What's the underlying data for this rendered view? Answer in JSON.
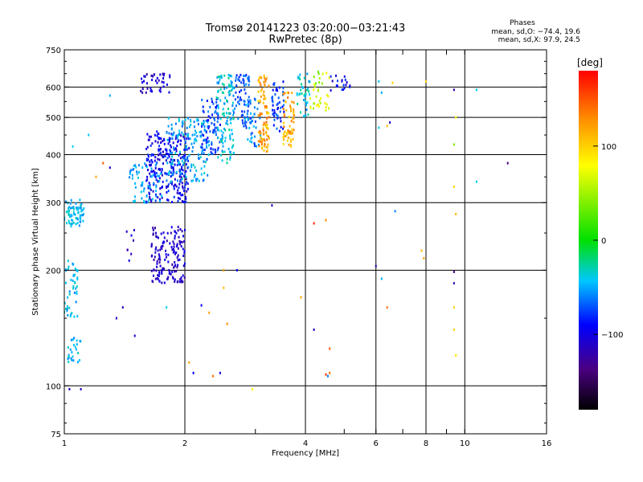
{
  "chart_data": {
    "type": "scatter",
    "title": "Tromsø 20141223 03:20:00−03:21:43",
    "subtitle": "RwPretec (8p)",
    "xlabel": "Frequency [MHz]",
    "ylabel": "Stationary phase Virtual Height [km]",
    "x_scale": "log",
    "y_scale": "log",
    "xlim": [
      1,
      16
    ],
    "ylim": [
      75,
      750
    ],
    "x_ticks": [
      1,
      2,
      4,
      6,
      8,
      10,
      16
    ],
    "x_tick_labels": [
      "1",
      "2",
      "4",
      "6",
      "8",
      "10",
      "16"
    ],
    "x_minor_ticks": [
      3,
      5,
      7,
      9
    ],
    "x_grid": [
      2,
      4,
      6,
      8,
      10
    ],
    "y_ticks": [
      75,
      100,
      200,
      300,
      400,
      500,
      600,
      750
    ],
    "y_tick_labels": [
      "75",
      "100",
      "200",
      "300",
      "400",
      "500",
      "600",
      "750"
    ],
    "y_grid": [
      100,
      200,
      300,
      400,
      500,
      600
    ],
    "legend": {
      "title": "Phases",
      "line1": "mean, sd,O: −74.4, 19.6",
      "line2": "mean, sd,X:  97.9, 24.5"
    },
    "colorbar": {
      "label": "[deg]",
      "range": [
        -180,
        180
      ],
      "ticks": [
        100,
        0,
        -100
      ],
      "tick_labels": [
        "100",
        "0",
        "−100"
      ]
    },
    "clusters": [
      {
        "x": [
          1.0,
          1.12
        ],
        "y": [
          260,
          305
        ],
        "n": 70,
        "phase": -45,
        "spread": 15
      },
      {
        "x": [
          1.0,
          1.08
        ],
        "y": [
          150,
          215
        ],
        "n": 45,
        "phase": -45,
        "spread": 15
      },
      {
        "x": [
          1.02,
          1.1
        ],
        "y": [
          115,
          135
        ],
        "n": 25,
        "phase": -45,
        "spread": 15
      },
      {
        "x": [
          1.6,
          2.05
        ],
        "y": [
          300,
          460
        ],
        "n": 260,
        "phase": -95,
        "spread": 20
      },
      {
        "x": [
          1.45,
          1.75
        ],
        "y": [
          300,
          380
        ],
        "n": 60,
        "phase": -50,
        "spread": 12
      },
      {
        "x": [
          1.8,
          2.3
        ],
        "y": [
          340,
          500
        ],
        "n": 160,
        "phase": -50,
        "spread": 20
      },
      {
        "x": [
          2.2,
          2.45
        ],
        "y": [
          400,
          560
        ],
        "n": 80,
        "phase": -75,
        "spread": 20
      },
      {
        "x": [
          1.55,
          1.85
        ],
        "y": [
          580,
          650
        ],
        "n": 40,
        "phase": -110,
        "spread": 15
      },
      {
        "x": [
          2.4,
          2.65
        ],
        "y": [
          380,
          650
        ],
        "n": 120,
        "phase": -40,
        "spread": 20
      },
      {
        "x": [
          2.65,
          2.9
        ],
        "y": [
          480,
          650
        ],
        "n": 60,
        "phase": -70,
        "spread": 15
      },
      {
        "x": [
          2.8,
          3.1
        ],
        "y": [
          420,
          560
        ],
        "n": 50,
        "phase": -60,
        "spread": 20
      },
      {
        "x": [
          3.05,
          3.25
        ],
        "y": [
          400,
          650
        ],
        "n": 90,
        "phase": 120,
        "spread": 25
      },
      {
        "x": [
          3.3,
          3.55
        ],
        "y": [
          460,
          620
        ],
        "n": 50,
        "phase": -80,
        "spread": 20
      },
      {
        "x": [
          3.5,
          3.75
        ],
        "y": [
          420,
          580
        ],
        "n": 60,
        "phase": 115,
        "spread": 25
      },
      {
        "x": [
          3.8,
          4.1
        ],
        "y": [
          500,
          650
        ],
        "n": 40,
        "phase": -40,
        "spread": 20
      },
      {
        "x": [
          4.1,
          4.6
        ],
        "y": [
          520,
          660
        ],
        "n": 35,
        "phase": 60,
        "spread": 30
      },
      {
        "x": [
          4.6,
          5.2
        ],
        "y": [
          580,
          650
        ],
        "n": 20,
        "phase": -90,
        "spread": 20
      },
      {
        "x": [
          1.65,
          2.0
        ],
        "y": [
          185,
          260
        ],
        "n": 150,
        "phase": -110,
        "spread": 15
      },
      {
        "x": [
          1.4,
          1.5
        ],
        "y": [
          210,
          255
        ],
        "n": 8,
        "phase": -110,
        "spread": 15
      }
    ],
    "scattered_points": [
      {
        "x": 2.05,
        "y": 115,
        "phase": 120
      },
      {
        "x": 2.1,
        "y": 108,
        "phase": -90
      },
      {
        "x": 2.35,
        "y": 106,
        "phase": 140
      },
      {
        "x": 2.45,
        "y": 108,
        "phase": -100
      },
      {
        "x": 4.5,
        "y": 107,
        "phase": 160
      },
      {
        "x": 4.6,
        "y": 108,
        "phase": 140
      },
      {
        "x": 4.55,
        "y": 106,
        "phase": -60
      },
      {
        "x": 2.95,
        "y": 98,
        "phase": 80
      },
      {
        "x": 1.03,
        "y": 98,
        "phase": -110
      },
      {
        "x": 1.1,
        "y": 98,
        "phase": -110
      },
      {
        "x": 4.2,
        "y": 265,
        "phase": 170
      },
      {
        "x": 4.5,
        "y": 270,
        "phase": 130
      },
      {
        "x": 6.0,
        "y": 205,
        "phase": -120
      },
      {
        "x": 6.7,
        "y": 285,
        "phase": -60
      },
      {
        "x": 7.8,
        "y": 225,
        "phase": 110
      },
      {
        "x": 7.9,
        "y": 215,
        "phase": 120
      },
      {
        "x": 9.4,
        "y": 198,
        "phase": -130
      },
      {
        "x": 9.4,
        "y": 185,
        "phase": -120
      },
      {
        "x": 9.5,
        "y": 120,
        "phase": 90
      },
      {
        "x": 9.4,
        "y": 140,
        "phase": 100
      },
      {
        "x": 9.4,
        "y": 160,
        "phase": 100
      },
      {
        "x": 9.5,
        "y": 280,
        "phase": 110
      },
      {
        "x": 9.4,
        "y": 330,
        "phase": 100
      },
      {
        "x": 9.4,
        "y": 425,
        "phase": 40
      },
      {
        "x": 9.4,
        "y": 590,
        "phase": -120
      },
      {
        "x": 9.5,
        "y": 500,
        "phase": 80
      },
      {
        "x": 10.7,
        "y": 590,
        "phase": -40
      },
      {
        "x": 10.7,
        "y": 340,
        "phase": -40
      },
      {
        "x": 12.8,
        "y": 380,
        "phase": -140
      },
      {
        "x": 6.4,
        "y": 160,
        "phase": 140
      },
      {
        "x": 6.2,
        "y": 190,
        "phase": -50
      },
      {
        "x": 6.1,
        "y": 470,
        "phase": -40
      },
      {
        "x": 6.4,
        "y": 475,
        "phase": 110
      },
      {
        "x": 6.5,
        "y": 485,
        "phase": -120
      },
      {
        "x": 6.2,
        "y": 580,
        "phase": -50
      },
      {
        "x": 6.6,
        "y": 615,
        "phase": 100
      },
      {
        "x": 6.1,
        "y": 620,
        "phase": -40
      },
      {
        "x": 8.0,
        "y": 620,
        "phase": 100
      },
      {
        "x": 1.25,
        "y": 380,
        "phase": 150
      },
      {
        "x": 1.3,
        "y": 370,
        "phase": -110
      },
      {
        "x": 1.2,
        "y": 350,
        "phase": 120
      },
      {
        "x": 1.4,
        "y": 160,
        "phase": -110
      },
      {
        "x": 1.5,
        "y": 135,
        "phase": -110
      },
      {
        "x": 1.35,
        "y": 150,
        "phase": -110
      },
      {
        "x": 1.8,
        "y": 160,
        "phase": -40
      },
      {
        "x": 2.2,
        "y": 162,
        "phase": -90
      },
      {
        "x": 2.3,
        "y": 155,
        "phase": 120
      },
      {
        "x": 2.55,
        "y": 145,
        "phase": 130
      },
      {
        "x": 2.5,
        "y": 200,
        "phase": 120
      },
      {
        "x": 2.7,
        "y": 200,
        "phase": -90
      },
      {
        "x": 2.5,
        "y": 180,
        "phase": 110
      },
      {
        "x": 3.3,
        "y": 295,
        "phase": -110
      },
      {
        "x": 4.2,
        "y": 140,
        "phase": -110
      },
      {
        "x": 4.6,
        "y": 125,
        "phase": 150
      },
      {
        "x": 3.9,
        "y": 170,
        "phase": 120
      },
      {
        "x": 1.3,
        "y": 570,
        "phase": -50
      },
      {
        "x": 1.05,
        "y": 420,
        "phase": -40
      },
      {
        "x": 1.15,
        "y": 450,
        "phase": -40
      }
    ]
  }
}
